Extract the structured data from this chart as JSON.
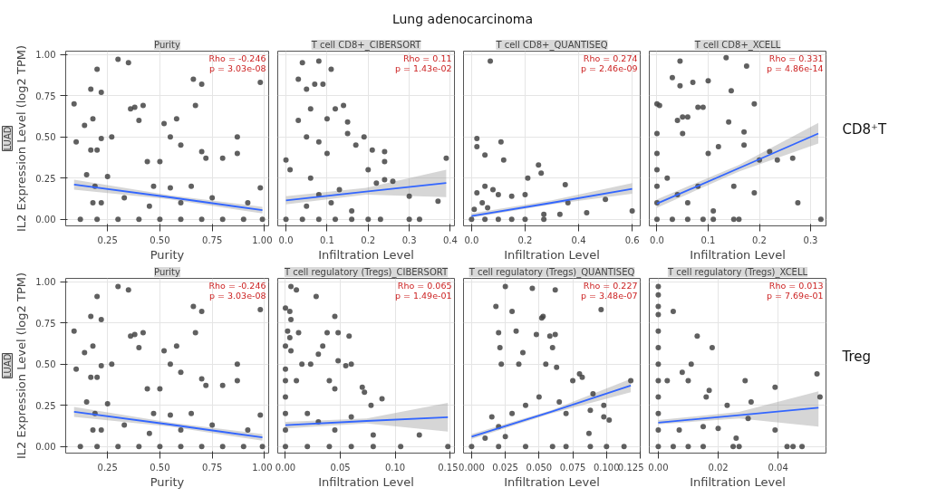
{
  "chart_data": [
    {
      "type": "other",
      "title": "Lung adenocarcinoma"
    },
    {
      "type": "scatter",
      "title": "Purity",
      "xlabel": "Purity",
      "ylabel": "IL2 Expression Level (log2 TPM)",
      "annotations": [
        "Rho = -0.246",
        "p = 3.03e-08",
        "LUAD"
      ],
      "xlim": [
        0.05,
        1.02
      ],
      "ylim": [
        -0.04,
        1.02
      ],
      "xticks": [
        {
          "value": 0.25,
          "label": "0.25"
        },
        {
          "value": 0.5,
          "label": "0.50"
        },
        {
          "value": 0.75,
          "label": "0.75"
        },
        {
          "value": 1,
          "label": "1.00"
        }
      ],
      "yticks": [
        {
          "value": 0,
          "label": "0.00"
        },
        {
          "value": 0.25,
          "label": "0.25"
        },
        {
          "value": 0.5,
          "label": "0.50"
        },
        {
          "value": 0.75,
          "label": "0.75"
        },
        {
          "value": 1,
          "label": "1.00"
        }
      ],
      "grid": true,
      "line_style": "solid",
      "series": [
        {
          "type": "scatter",
          "marker": "circle",
          "color": "#444444",
          "x": [
            0.09,
            0.1,
            0.14,
            0.17,
            0.18,
            0.2,
            0.22,
            0.17,
            0.2,
            0.22,
            0.15,
            0.19,
            0.22,
            0.18,
            0.25,
            0.27,
            0.3,
            0.35,
            0.36,
            0.38,
            0.42,
            0.4,
            0.44,
            0.47,
            0.5,
            0.52,
            0.55,
            0.58,
            0.55,
            0.6,
            0.66,
            0.7,
            0.67,
            0.7,
            0.72,
            0.65,
            0.75,
            0.8,
            0.87,
            0.87,
            0.98,
            0.98,
            0.92,
            0.6,
            0.45,
            0.33,
            0.12,
            0.2,
            0.3,
            0.4,
            0.5,
            0.6,
            0.7,
            0.8,
            0.9,
            0.99
          ],
          "values": [
            0.7,
            0.47,
            0.57,
            0.79,
            0.61,
            0.91,
            0.77,
            0.42,
            0.42,
            0.49,
            0.27,
            0.2,
            0.1,
            0.1,
            0.26,
            0.5,
            0.97,
            0.95,
            0.67,
            0.68,
            0.69,
            0.6,
            0.35,
            0.2,
            0.35,
            0.58,
            0.5,
            0.61,
            0.19,
            0.45,
            0.85,
            0.82,
            0.69,
            0.41,
            0.37,
            0.2,
            0.13,
            0.37,
            0.5,
            0.4,
            0.83,
            0.19,
            0.1,
            0.1,
            0.08,
            0.13,
            0,
            0,
            0,
            0,
            0,
            0,
            0,
            0,
            0,
            0
          ]
        },
        {
          "type": "line",
          "color": "#3366ff",
          "x": [
            0.09,
            0.55,
            0.99
          ],
          "values": [
            0.21,
            0.133,
            0.055
          ],
          "lower": [
            0.18,
            0.12,
            0.035
          ],
          "upper": [
            0.24,
            0.146,
            0.075
          ]
        }
      ]
    },
    {
      "type": "scatter",
      "title": "T cell CD8+_CIBERSORT",
      "xlabel": "Infiltration Level",
      "annotations": [
        "Rho = 0.11",
        "p = 1.43e-02"
      ],
      "xlim": [
        -0.02,
        0.41
      ],
      "ylim": [
        -0.04,
        1.02
      ],
      "tick_labels": "x",
      "xticks": [
        {
          "value": 0,
          "label": "0.0"
        },
        {
          "value": 0.1,
          "label": "0.1"
        },
        {
          "value": 0.2,
          "label": "0.2"
        },
        {
          "value": 0.3,
          "label": "0.3"
        },
        {
          "value": 0.4,
          "label": "0.4"
        }
      ],
      "yticks": [
        0,
        0.25,
        0.5,
        0.75,
        1
      ],
      "grid": true,
      "line_style": "solid",
      "series": [
        {
          "type": "scatter",
          "marker": "circle",
          "color": "#444444",
          "x": [
            0.0,
            0.01,
            0.03,
            0.04,
            0.05,
            0.06,
            0.07,
            0.08,
            0.09,
            0.11,
            0.1,
            0.12,
            0.14,
            0.15,
            0.03,
            0.05,
            0.08,
            0.1,
            0.15,
            0.19,
            0.17,
            0.21,
            0.24,
            0.24,
            0.2,
            0.22,
            0.24,
            0.26,
            0.3,
            0.37,
            0.39,
            0.06,
            0.08,
            0.11,
            0.05,
            0.13,
            0.16,
            0.0,
            0.04,
            0.08,
            0.12,
            0.16,
            0.2,
            0.23,
            0.3,
            0.325
          ],
          "values": [
            0.36,
            0.3,
            0.85,
            0.95,
            0.79,
            0.67,
            0.82,
            0.96,
            0.82,
            0.91,
            0.61,
            0.67,
            0.69,
            0.59,
            0.6,
            0.5,
            0.47,
            0.4,
            0.52,
            0.5,
            0.45,
            0.42,
            0.41,
            0.35,
            0.3,
            0.22,
            0.24,
            0.23,
            0.14,
            0.11,
            0.37,
            0.25,
            0.15,
            0.1,
            0.08,
            0.18,
            0.05,
            0,
            0,
            0,
            0,
            0,
            0,
            0,
            0,
            0
          ]
        },
        {
          "type": "line",
          "color": "#3366ff",
          "x": [
            0.0,
            0.195,
            0.39
          ],
          "values": [
            0.115,
            0.168,
            0.22
          ],
          "lower": [
            0.09,
            0.15,
            0.135
          ],
          "upper": [
            0.14,
            0.19,
            0.3
          ]
        }
      ]
    },
    {
      "type": "scatter",
      "title": "T cell CD8+_QUANTISEQ",
      "xlabel": "Infiltration Level",
      "annotations": [
        "Rho = 0.274",
        "p = 2.46e-09"
      ],
      "xlim": [
        -0.03,
        0.63
      ],
      "ylim": [
        -0.04,
        1.02
      ],
      "tick_labels": "x",
      "xticks": [
        {
          "value": 0,
          "label": "0.0"
        },
        {
          "value": 0.2,
          "label": "0.2"
        },
        {
          "value": 0.4,
          "label": "0.4"
        },
        {
          "value": 0.6,
          "label": "0.6"
        }
      ],
      "yticks": [
        0,
        0.25,
        0.5,
        0.75,
        1
      ],
      "grid": true,
      "line_style": "solid",
      "series": [
        {
          "type": "scatter",
          "marker": "circle",
          "color": "#444444",
          "x": [
            0.07,
            0.02,
            0.02,
            0.11,
            0.05,
            0.12,
            0.25,
            0.26,
            0.21,
            0.35,
            0.05,
            0.08,
            0.02,
            0.1,
            0.15,
            0.2,
            0.5,
            0.36,
            0.43,
            0.6,
            0.33,
            0.27,
            0.04,
            0.06,
            0.01,
            0.0,
            0.05,
            0.1,
            0.15,
            0.2,
            0.27
          ],
          "values": [
            0.96,
            0.49,
            0.44,
            0.47,
            0.39,
            0.36,
            0.33,
            0.28,
            0.25,
            0.21,
            0.2,
            0.18,
            0.16,
            0.15,
            0.14,
            0.15,
            0.12,
            0.1,
            0.04,
            0.05,
            0.03,
            0.03,
            0.1,
            0.07,
            0.06,
            0,
            0,
            0,
            0,
            0,
            0
          ]
        },
        {
          "type": "line",
          "color": "#3366ff",
          "x": [
            0.0,
            0.3,
            0.6
          ],
          "values": [
            0.02,
            0.1,
            0.185
          ],
          "lower": [
            0.01,
            0.09,
            0.155
          ],
          "upper": [
            0.035,
            0.115,
            0.22
          ]
        }
      ]
    },
    {
      "type": "scatter",
      "title": "T cell CD8+_XCELL",
      "xlabel": "Infiltration Level",
      "annotations": [
        "Rho = 0.331",
        "p = 4.86e-14"
      ],
      "xlim": [
        -0.015,
        0.33
      ],
      "ylim": [
        -0.04,
        1.02
      ],
      "tick_labels": "x",
      "xticks": [
        {
          "value": 0,
          "label": "0.0"
        },
        {
          "value": 0.1,
          "label": "0.1"
        },
        {
          "value": 0.2,
          "label": "0.2"
        },
        {
          "value": 0.3,
          "label": "0.3"
        }
      ],
      "yticks": [
        0,
        0.25,
        0.5,
        0.75,
        1
      ],
      "grid": true,
      "line_style": "solid",
      "series": [
        {
          "type": "scatter",
          "marker": "circle",
          "color": "#444444",
          "x": [
            0.0,
            0.005,
            0.03,
            0.045,
            0.045,
            0.07,
            0.1,
            0.145,
            0.135,
            0.175,
            0.08,
            0.09,
            0.19,
            0.05,
            0.06,
            0.04,
            0.14,
            0.17,
            0.0,
            0.05,
            0.1,
            0.12,
            0.17,
            0.22,
            0.265,
            0.2,
            0.235,
            0.275,
            0.32,
            0.15,
            0.19,
            0.08,
            0.0,
            0.0,
            0.0,
            0.0,
            0.02,
            0.04,
            0.06,
            0.11,
            0.0,
            0.03,
            0.06,
            0.09,
            0.11,
            0.15,
            0.16
          ],
          "values": [
            0.7,
            0.69,
            0.86,
            0.96,
            0.81,
            0.83,
            0.84,
            0.78,
            0.98,
            0.93,
            0.68,
            0.68,
            0.7,
            0.62,
            0.62,
            0.6,
            0.59,
            0.53,
            0.52,
            0.52,
            0.4,
            0.44,
            0.45,
            0.41,
            0.37,
            0.36,
            0.36,
            0.1,
            0.0,
            0.2,
            0.16,
            0.2,
            0.4,
            0.3,
            0.2,
            0.1,
            0.25,
            0.15,
            0.1,
            0.05,
            0,
            0,
            0,
            0,
            0,
            0,
            0
          ]
        },
        {
          "type": "line",
          "color": "#3366ff",
          "x": [
            0.0,
            0.16,
            0.315
          ],
          "values": [
            0.095,
            0.31,
            0.52
          ],
          "lower": [
            0.07,
            0.29,
            0.46
          ],
          "upper": [
            0.12,
            0.33,
            0.585
          ]
        }
      ]
    },
    {
      "type": "other",
      "title": "CD8⁺T"
    },
    {
      "type": "scatter",
      "title": "Purity",
      "xlabel": "Purity",
      "ylabel": "IL2 Expression Level (log2 TPM)",
      "annotations": [
        "Rho = -0.246",
        "p = 3.03e-08",
        "LUAD"
      ],
      "xlim": [
        0.05,
        1.02
      ],
      "ylim": [
        -0.04,
        1.02
      ],
      "xticks": [
        {
          "value": 0.25,
          "label": "0.25"
        },
        {
          "value": 0.5,
          "label": "0.50"
        },
        {
          "value": 0.75,
          "label": "0.75"
        },
        {
          "value": 1,
          "label": "1.00"
        }
      ],
      "yticks": [
        {
          "value": 0,
          "label": "0.00"
        },
        {
          "value": 0.25,
          "label": "0.25"
        },
        {
          "value": 0.5,
          "label": "0.50"
        },
        {
          "value": 0.75,
          "label": "0.75"
        },
        {
          "value": 1,
          "label": "1.00"
        }
      ],
      "grid": true,
      "line_style": "solid",
      "series": [
        {
          "type": "scatter",
          "marker": "circle",
          "color": "#444444",
          "x": [
            0.09,
            0.1,
            0.14,
            0.17,
            0.18,
            0.2,
            0.22,
            0.17,
            0.2,
            0.22,
            0.15,
            0.19,
            0.22,
            0.18,
            0.25,
            0.27,
            0.3,
            0.35,
            0.36,
            0.38,
            0.42,
            0.4,
            0.44,
            0.47,
            0.5,
            0.52,
            0.55,
            0.58,
            0.55,
            0.6,
            0.66,
            0.7,
            0.67,
            0.7,
            0.72,
            0.65,
            0.75,
            0.8,
            0.87,
            0.87,
            0.98,
            0.98,
            0.92,
            0.6,
            0.45,
            0.33,
            0.12,
            0.2,
            0.3,
            0.4,
            0.5,
            0.6,
            0.7,
            0.8,
            0.9,
            0.99
          ],
          "values": [
            0.7,
            0.47,
            0.57,
            0.79,
            0.61,
            0.91,
            0.77,
            0.42,
            0.42,
            0.49,
            0.27,
            0.2,
            0.1,
            0.1,
            0.26,
            0.5,
            0.97,
            0.95,
            0.67,
            0.68,
            0.69,
            0.6,
            0.35,
            0.2,
            0.35,
            0.58,
            0.5,
            0.61,
            0.19,
            0.45,
            0.85,
            0.82,
            0.69,
            0.41,
            0.37,
            0.2,
            0.13,
            0.37,
            0.5,
            0.4,
            0.83,
            0.19,
            0.1,
            0.1,
            0.08,
            0.13,
            0,
            0,
            0,
            0,
            0,
            0,
            0,
            0,
            0,
            0
          ]
        },
        {
          "type": "line",
          "color": "#3366ff",
          "x": [
            0.09,
            0.55,
            0.99
          ],
          "values": [
            0.21,
            0.133,
            0.055
          ],
          "lower": [
            0.18,
            0.12,
            0.035
          ],
          "upper": [
            0.24,
            0.146,
            0.075
          ]
        }
      ]
    },
    {
      "type": "scatter",
      "title": "T cell regulatory (Tregs)_CIBERSORT",
      "xlabel": "Infiltration Level",
      "annotations": [
        "Rho = 0.065",
        "p = 1.49e-01"
      ],
      "xlim": [
        -0.007,
        0.154
      ],
      "ylim": [
        -0.04,
        1.02
      ],
      "tick_labels": "x",
      "xticks": [
        {
          "value": 0,
          "label": "0.00"
        },
        {
          "value": 0.05,
          "label": "0.05"
        },
        {
          "value": 0.1,
          "label": "0.10"
        },
        {
          "value": 0.15,
          "label": "0.15"
        }
      ],
      "yticks": [
        0,
        0.25,
        0.5,
        0.75,
        1
      ],
      "grid": true,
      "line_style": "solid",
      "series": [
        {
          "type": "scatter",
          "marker": "circle",
          "color": "#444444",
          "x": [
            0.005,
            0.01,
            0.028,
            0.0,
            0.004,
            0.005,
            0.002,
            0.004,
            0.012,
            0.045,
            0.038,
            0.048,
            0.058,
            0.034,
            0.03,
            0.0,
            0.005,
            0.015,
            0.023,
            0.048,
            0.055,
            0.06,
            0.0,
            0.0,
            0.0,
            0.0,
            0.0,
            0.01,
            0.04,
            0.045,
            0.07,
            0.072,
            0.078,
            0.088,
            0.08,
            0.122,
            0.02,
            0.03,
            0.045,
            0.06,
            0.0,
            0.02,
            0.04,
            0.06,
            0.08,
            0.105,
            0.148
          ],
          "values": [
            0.97,
            0.95,
            0.91,
            0.84,
            0.82,
            0.77,
            0.7,
            0.66,
            0.69,
            0.79,
            0.69,
            0.69,
            0.67,
            0.61,
            0.56,
            0.61,
            0.58,
            0.5,
            0.5,
            0.52,
            0.49,
            0.5,
            0.47,
            0.4,
            0.3,
            0.2,
            0.1,
            0.4,
            0.4,
            0.35,
            0.36,
            0.33,
            0.25,
            0.29,
            0.07,
            0.07,
            0.2,
            0.15,
            0.1,
            0.18,
            0,
            0,
            0,
            0,
            0,
            0,
            0
          ]
        },
        {
          "type": "line",
          "color": "#3366ff",
          "x": [
            0.0,
            0.074,
            0.148
          ],
          "values": [
            0.13,
            0.155,
            0.178
          ],
          "lower": [
            0.11,
            0.14,
            0.09
          ],
          "upper": [
            0.15,
            0.17,
            0.265
          ]
        }
      ]
    },
    {
      "type": "scatter",
      "title": "T cell regulatory (Tregs)_QUANTISEQ",
      "xlabel": "Infiltration Level",
      "annotations": [
        "Rho = 0.227",
        "p = 3.48e-07"
      ],
      "xlim": [
        -0.006,
        0.125
      ],
      "ylim": [
        -0.04,
        1.02
      ],
      "tick_labels": "x",
      "xticks": [
        {
          "value": 0,
          "label": "0.000"
        },
        {
          "value": 0.025,
          "label": "0.025"
        },
        {
          "value": 0.05,
          "label": "0.050"
        },
        {
          "value": 0.075,
          "label": "0.075"
        },
        {
          "value": 0.1,
          "label": "0.100"
        },
        {
          "value": 0.125,
          "label": "0.125"
        }
      ],
      "yticks": [
        0,
        0.25,
        0.5,
        0.75,
        1
      ],
      "grid": true,
      "line_style": "solid",
      "series": [
        {
          "type": "scatter",
          "marker": "circle",
          "color": "#444444",
          "x": [
            0.025,
            0.045,
            0.062,
            0.018,
            0.03,
            0.096,
            0.053,
            0.052,
            0.02,
            0.033,
            0.048,
            0.058,
            0.062,
            0.021,
            0.038,
            0.06,
            0.022,
            0.035,
            0.055,
            0.063,
            0.08,
            0.082,
            0.118,
            0.09,
            0.075,
            0.098,
            0.098,
            0.102,
            0.088,
            0.065,
            0.07,
            0.05,
            0.04,
            0.03,
            0.02,
            0.01,
            0.015,
            0.025,
            0.087,
            0.088,
            0.0,
            0.02,
            0.04,
            0.06,
            0.07,
            0.1,
            0.113
          ],
          "values": [
            0.97,
            0.96,
            0.95,
            0.85,
            0.82,
            0.83,
            0.79,
            0.78,
            0.69,
            0.7,
            0.68,
            0.67,
            0.68,
            0.6,
            0.57,
            0.6,
            0.5,
            0.5,
            0.5,
            0.48,
            0.44,
            0.42,
            0.4,
            0.32,
            0.4,
            0.25,
            0.18,
            0.16,
            0.22,
            0.27,
            0.2,
            0.3,
            0.25,
            0.2,
            0.12,
            0.05,
            0.18,
            0.06,
            0.08,
            0,
            0,
            0,
            0,
            0,
            0,
            0,
            0
          ]
        },
        {
          "type": "line",
          "color": "#3366ff",
          "x": [
            0.0,
            0.059,
            0.118
          ],
          "values": [
            0.06,
            0.21,
            0.37
          ],
          "lower": [
            0.045,
            0.2,
            0.33
          ],
          "upper": [
            0.075,
            0.22,
            0.41
          ]
        }
      ]
    },
    {
      "type": "scatter",
      "title": "T cell regulatory (Tregs)_XCELL",
      "xlabel": "Infiltration Level",
      "annotations": [
        "Rho = 0.013",
        "p = 7.69e-01"
      ],
      "xlim": [
        -0.003,
        0.056
      ],
      "ylim": [
        -0.04,
        1.02
      ],
      "tick_labels": "x",
      "xticks": [
        {
          "value": 0,
          "label": "0.00"
        },
        {
          "value": 0.02,
          "label": "0.02"
        },
        {
          "value": 0.04,
          "label": "0.04"
        }
      ],
      "yticks": [
        0,
        0.25,
        0.5,
        0.75,
        1
      ],
      "grid": true,
      "line_style": "solid",
      "series": [
        {
          "type": "scatter",
          "marker": "circle",
          "color": "#444444",
          "x": [
            0.0,
            0.0,
            0.0,
            0.0,
            0.0,
            0.0,
            0.0,
            0.0,
            0.0,
            0.0,
            0.0,
            0.005,
            0.013,
            0.018,
            0.011,
            0.008,
            0.003,
            0.01,
            0.029,
            0.039,
            0.053,
            0.054,
            0.017,
            0.016,
            0.023,
            0.031,
            0.03,
            0.039,
            0.02,
            0.026,
            0.007,
            0.015,
            0.0,
            0.005,
            0.01,
            0.015,
            0.025,
            0.027,
            0.043,
            0.045,
            0.048
          ],
          "values": [
            0.97,
            0.92,
            0.85,
            0.8,
            0.7,
            0.6,
            0.5,
            0.4,
            0.3,
            0.2,
            0.1,
            0.82,
            0.67,
            0.6,
            0.5,
            0.45,
            0.4,
            0.4,
            0.4,
            0.36,
            0.44,
            0.3,
            0.34,
            0.3,
            0.25,
            0.27,
            0.17,
            0.1,
            0.11,
            0.05,
            0.1,
            0.12,
            0,
            0,
            0,
            0,
            0,
            0,
            0,
            0,
            0
          ]
        },
        {
          "type": "line",
          "color": "#3366ff",
          "x": [
            0.0,
            0.027,
            0.0535
          ],
          "values": [
            0.145,
            0.19,
            0.235
          ],
          "lower": [
            0.135,
            0.17,
            0.12
          ],
          "upper": [
            0.16,
            0.21,
            0.335
          ]
        }
      ]
    },
    {
      "type": "other",
      "title": "Treg"
    }
  ]
}
